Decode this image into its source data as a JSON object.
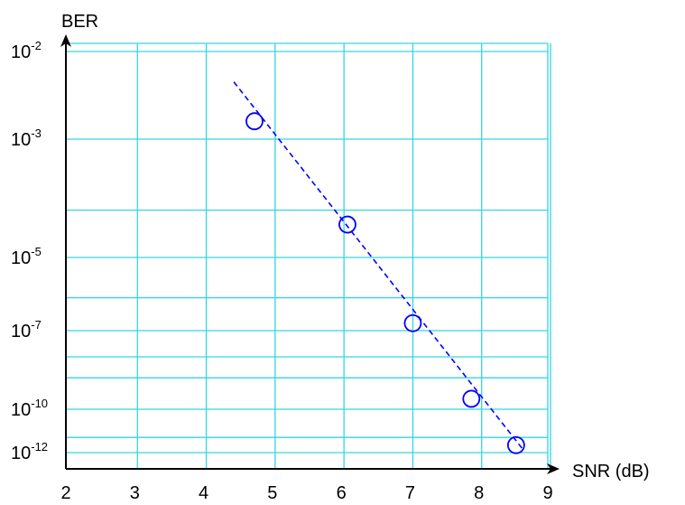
{
  "chart_data": {
    "type": "line",
    "title": "",
    "xlabel": "SNR (dB)",
    "ylabel": "BER",
    "x_ticks": [
      {
        "value": 2,
        "label": "2"
      },
      {
        "value": 3,
        "label": "3"
      },
      {
        "value": 4,
        "label": "4"
      },
      {
        "value": 5,
        "label": "5"
      },
      {
        "value": 6,
        "label": "6"
      },
      {
        "value": 7,
        "label": "7"
      },
      {
        "value": 8,
        "label": "8"
      },
      {
        "value": 9,
        "label": "9"
      }
    ],
    "y_ticks": [
      {
        "value": 0.01,
        "base": "10",
        "exp": "-2"
      },
      {
        "value": 0.001,
        "base": "10",
        "exp": "-3"
      },
      {
        "value": 1e-05,
        "base": "10",
        "exp": "-5"
      },
      {
        "value": 1e-07,
        "base": "10",
        "exp": "-7"
      },
      {
        "value": 1e-10,
        "base": "10",
        "exp": "-10"
      },
      {
        "value": 1e-12,
        "base": "10",
        "exp": "-12"
      }
    ],
    "y_gridlines": [
      0.01,
      0.001,
      0.0001,
      1e-05,
      1e-06,
      1e-07,
      1e-08,
      1e-09,
      1e-10,
      1e-11,
      1e-12
    ],
    "y_tick_log_pos": [
      -2,
      -3,
      -4.2,
      -5,
      -6.1,
      -7,
      -8,
      -8.8,
      -10,
      -11.3,
      -12
    ],
    "xlim": [
      2,
      9
    ],
    "ylim": [
      1e-12,
      0.01
    ],
    "y_scale": "log",
    "grid": true,
    "series": [
      {
        "marker": "circle",
        "marker_color": "#0000ff",
        "points": [
          {
            "x": 4.7,
            "y": 0.0016
          },
          {
            "x": 6.05,
            "y": 3.6e-05
          },
          {
            "x": 7.0,
            "y": 1.6e-07
          },
          {
            "x": 7.85,
            "y": 2.5e-10
          },
          {
            "x": 8.5,
            "y": 2.2e-12
          }
        ]
      },
      {
        "line_style": "dashed",
        "color": "#0000ff",
        "points": [
          {
            "x": 4.4,
            "y": 0.0045
          },
          {
            "x": 8.6,
            "y": 1.4e-12
          }
        ]
      }
    ],
    "colors": {
      "grid": "#33d6e0",
      "axis": "#000000",
      "series": "#0000ff"
    }
  }
}
